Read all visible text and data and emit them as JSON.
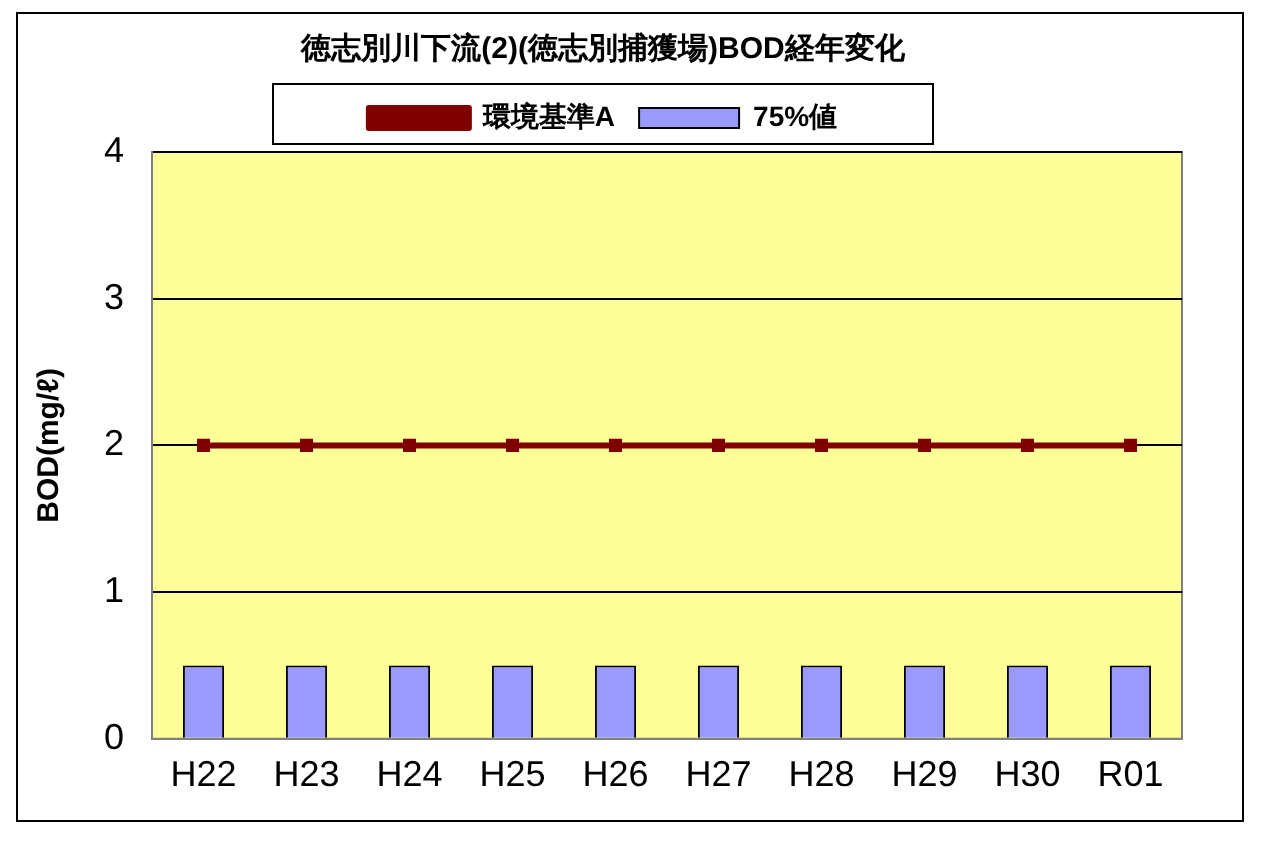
{
  "chart_data": {
    "type": "bar",
    "title": "徳志別川下流(2)(徳志別捕獲場)BOD経年変化",
    "ylabel": "BOD(mg/ℓ)",
    "categories": [
      "H22",
      "H23",
      "H24",
      "H25",
      "H26",
      "H27",
      "H28",
      "H29",
      "H30",
      "R01"
    ],
    "series": [
      {
        "name": "75%値",
        "color": "#9999ff",
        "values": [
          0.5,
          0.5,
          0.5,
          0.5,
          0.5,
          0.5,
          0.5,
          0.5,
          0.5,
          0.5
        ]
      },
      {
        "name": "環境基準A",
        "type": "line",
        "color": "#800000",
        "marker": "square",
        "values": [
          2,
          2,
          2,
          2,
          2,
          2,
          2,
          2,
          2,
          2
        ]
      }
    ],
    "ylim": [
      0,
      4
    ],
    "yticks": [
      0,
      1,
      2,
      3,
      4
    ],
    "grid": "y",
    "legend": "top"
  }
}
